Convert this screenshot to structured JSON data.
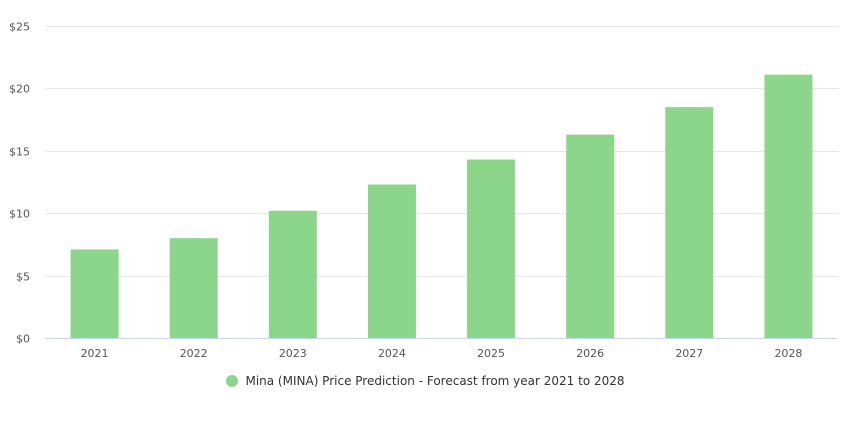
{
  "chart_data": {
    "type": "bar",
    "categories": [
      "2021",
      "2022",
      "2023",
      "2024",
      "2025",
      "2026",
      "2027",
      "2028"
    ],
    "series": [
      {
        "name": "Mina (MINA) Price Prediction - Forecast from year 2021 to 2028",
        "values": [
          7.1,
          8.0,
          10.2,
          12.3,
          14.3,
          16.3,
          18.5,
          21.1
        ],
        "color": "#8cd68b"
      }
    ],
    "y_ticks": [
      "$0",
      "$5",
      "$10",
      "$15",
      "$20",
      "$25"
    ],
    "ylim": [
      0,
      25
    ],
    "grid": true,
    "legend_position": "bottom-center",
    "title": "",
    "xlabel": "",
    "ylabel": ""
  }
}
